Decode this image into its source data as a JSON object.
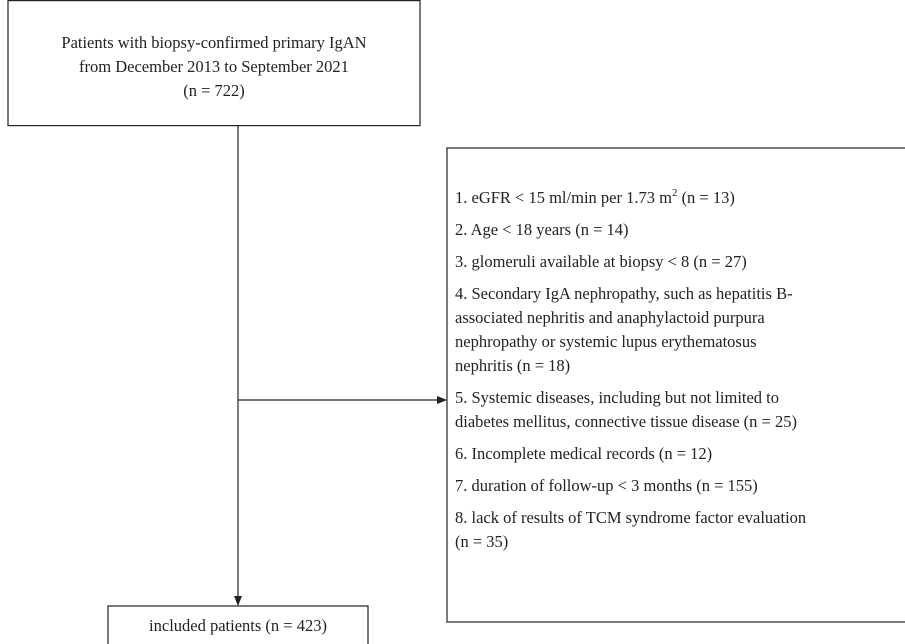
{
  "nodes": [
    {
      "lines": [
        "Patients with biopsy-confirmed primary IgAN",
        "from December 2013 to September 2021",
        "(n = 722)"
      ]
    },
    {
      "lines": [
        "included patients (n = 423)"
      ]
    }
  ],
  "exclusions": {
    "items": [
      {
        "lines": [
          {
            "text": "1. eGFR < 15 ml/min per 1.73 m",
            "sup": "2",
            "after": " (n = 13)"
          }
        ]
      },
      {
        "lines": [
          "2. Age < 18 years (n = 14)"
        ]
      },
      {
        "lines": [
          "3. glomeruli available at biopsy < 8 (n = 27)"
        ]
      },
      {
        "lines": [
          "4. Secondary IgA nephropathy, such as hepatitis B-",
          "associated nephritis and anaphylactoid purpura",
          "nephropathy or systemic lupus erythematosus",
          "nephritis (n = 18)"
        ]
      },
      {
        "lines": [
          "5. Systemic diseases, including but not limited to",
          "diabetes mellitus, connective tissue disease (n = 25)"
        ]
      },
      {
        "lines": [
          "6. Incomplete medical records (n = 12)"
        ]
      },
      {
        "lines": [
          "7. duration of follow-up < 3 months (n = 155)"
        ]
      },
      {
        "lines": [
          "8. lack of results of TCM syndrome factor evaluation",
          "(n = 35)"
        ]
      }
    ]
  }
}
